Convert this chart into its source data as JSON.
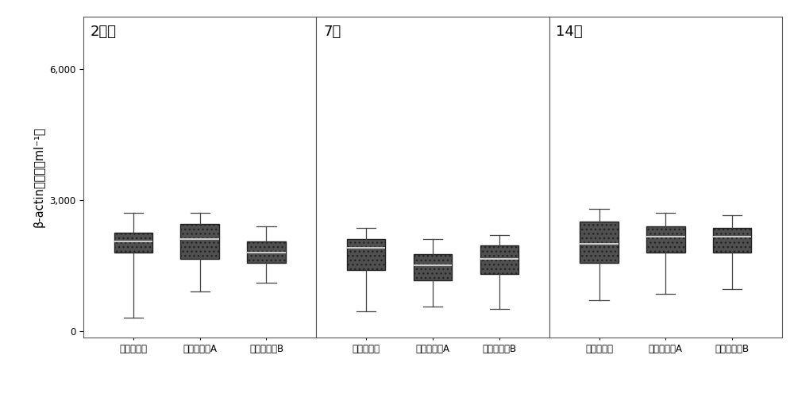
{
  "panel_titles": [
    "2小时",
    "7天",
    "14天"
  ],
  "categories": [
    "单离心体系",
    "双离心体系A",
    "双离心体系B"
  ],
  "ylabel": "β-actin拷贝数（ml⁻¹）",
  "yticks": [
    0,
    3000,
    6000
  ],
  "ymax": 7200,
  "ymin": -150,
  "box_data": {
    "2h": [
      {
        "whislo": 300,
        "q1": 1800,
        "med": 2050,
        "q3": 2250,
        "whishi": 2700
      },
      {
        "whislo": 900,
        "q1": 1650,
        "med": 2100,
        "q3": 2450,
        "whishi": 2700
      },
      {
        "whislo": 1100,
        "q1": 1550,
        "med": 1800,
        "q3": 2050,
        "whishi": 2400
      }
    ],
    "7d": [
      {
        "whislo": 450,
        "q1": 1400,
        "med": 1900,
        "q3": 2100,
        "whishi": 2350
      },
      {
        "whislo": 550,
        "q1": 1150,
        "med": 1500,
        "q3": 1750,
        "whishi": 2100
      },
      {
        "whislo": 500,
        "q1": 1300,
        "med": 1650,
        "q3": 1950,
        "whishi": 2200
      }
    ],
    "14d": [
      {
        "whislo": 700,
        "q1": 1550,
        "med": 2000,
        "q3": 2500,
        "whishi": 2800
      },
      {
        "whislo": 850,
        "q1": 1800,
        "med": 2150,
        "q3": 2400,
        "whishi": 2700
      },
      {
        "whislo": 950,
        "q1": 1800,
        "med": 2150,
        "q3": 2350,
        "whishi": 2650
      }
    ]
  },
  "box_facecolor": "#505050",
  "box_edgecolor": "#222222",
  "median_color": "#cccccc",
  "whisker_color": "#444444",
  "cap_color": "#444444",
  "background_color": "#ffffff",
  "panel_label_fontsize": 13,
  "tick_label_fontsize": 8.5,
  "ylabel_fontsize": 10.5
}
